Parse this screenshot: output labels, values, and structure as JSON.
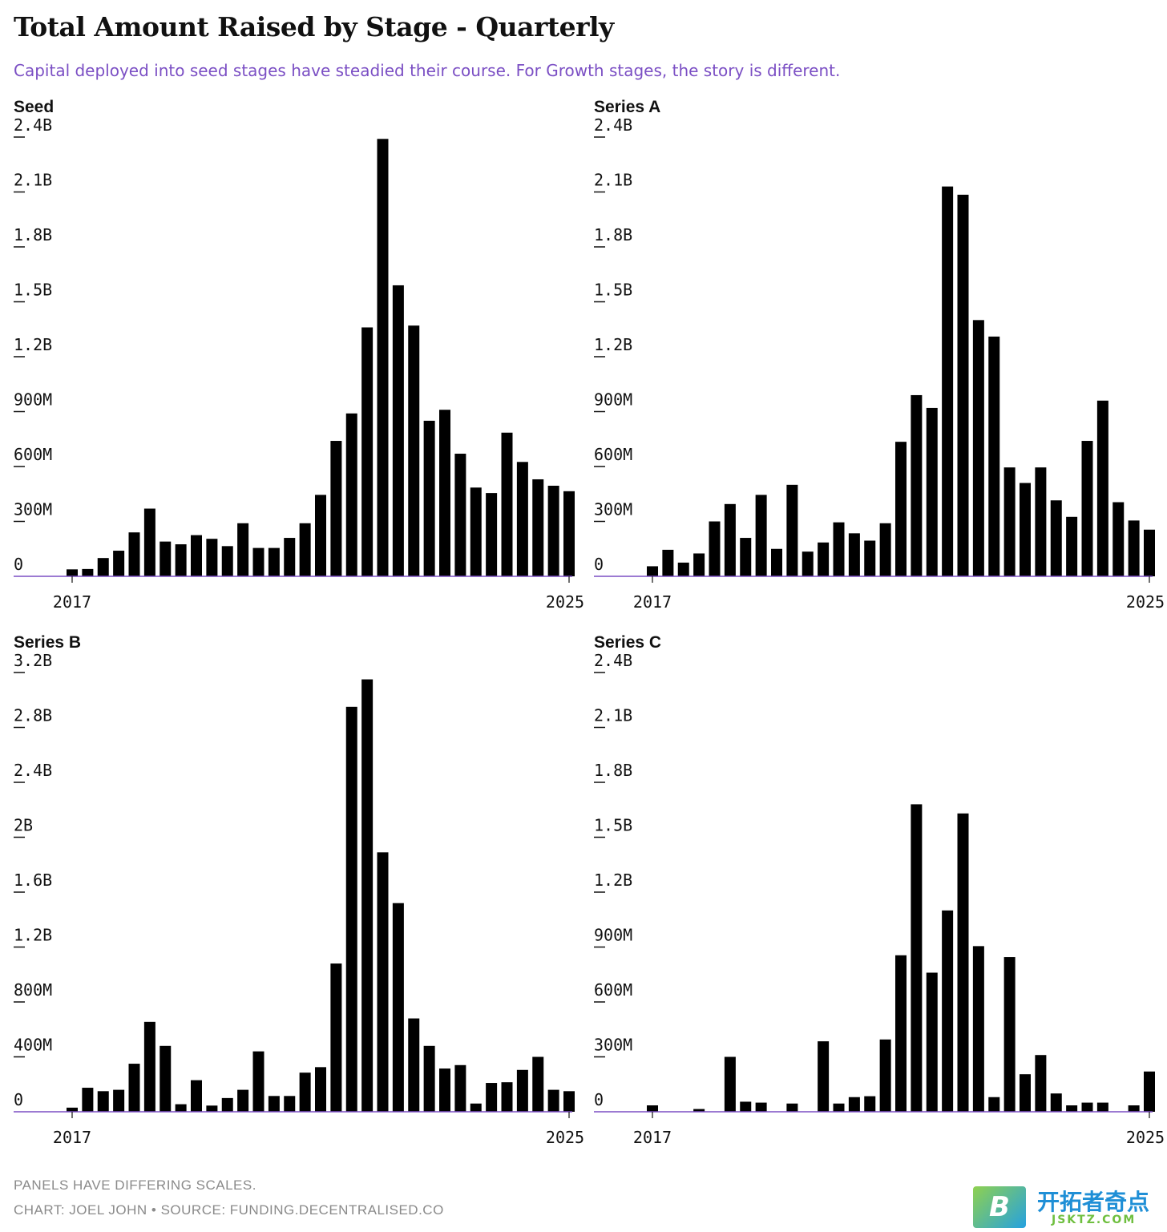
{
  "title": "Total Amount Raised by Stage - Quarterly",
  "subtitle": "Capital deployed into seed stages have steadied their course. For Growth stages, the story is different.",
  "footer": {
    "note": "PANELS HAVE DIFFERING SCALES.",
    "credit": "CHART: JOEL JOHN • SOURCE: FUNDING.DECENTRALISED.CO"
  },
  "watermark": {
    "logo_letter": "B",
    "name": "开拓者奇点",
    "domain": "JSKTZ.COM"
  },
  "colors": {
    "bar": "#000000",
    "baseline": "#7b4fc4",
    "subtitle": "#7b4fc4",
    "footer": "#8a8a8a",
    "text": "#111111"
  },
  "chart_data": [
    {
      "type": "bar",
      "title": "Seed",
      "x_tick_labels": [
        "2017",
        "2025"
      ],
      "y_tick_labels": [
        "0",
        "300M",
        "600M",
        "900M",
        "1.2B",
        "1.5B",
        "1.8B",
        "2.1B",
        "2.4B"
      ],
      "ylim": [
        0,
        2400
      ],
      "unit": "M",
      "values": [
        38,
        40,
        100,
        140,
        240,
        370,
        190,
        175,
        225,
        205,
        165,
        290,
        155,
        155,
        210,
        290,
        445,
        740,
        890,
        1360,
        2390,
        1590,
        1370,
        850,
        910,
        670,
        485,
        455,
        785,
        625,
        530,
        495,
        465
      ],
      "grid": false
    },
    {
      "type": "bar",
      "title": "Series A",
      "x_tick_labels": [
        "2017",
        "2025"
      ],
      "y_tick_labels": [
        "0",
        "300M",
        "600M",
        "900M",
        "1.2B",
        "1.5B",
        "1.8B",
        "2.1B",
        "2.4B"
      ],
      "ylim": [
        0,
        2400
      ],
      "unit": "M",
      "values": [
        55,
        145,
        75,
        125,
        300,
        395,
        210,
        445,
        150,
        500,
        135,
        185,
        295,
        235,
        195,
        290,
        735,
        990,
        920,
        2130,
        2085,
        1400,
        1310,
        595,
        510,
        595,
        415,
        325,
        740,
        960,
        405,
        305,
        255
      ],
      "grid": false
    },
    {
      "type": "bar",
      "title": "Series B",
      "x_tick_labels": [
        "2017",
        "2025"
      ],
      "y_tick_labels": [
        "0",
        "400M",
        "800M",
        "1.2B",
        "1.6B",
        "2B",
        "2.4B",
        "2.8B",
        "3.2B"
      ],
      "ylim": [
        0,
        3200
      ],
      "unit": "M",
      "values": [
        30,
        175,
        150,
        160,
        350,
        655,
        480,
        55,
        230,
        45,
        100,
        160,
        440,
        115,
        115,
        285,
        325,
        1080,
        2950,
        3150,
        1890,
        1520,
        680,
        480,
        315,
        340,
        60,
        210,
        215,
        305,
        400,
        160,
        150
      ],
      "grid": false
    },
    {
      "type": "bar",
      "title": "Series C",
      "x_tick_labels": [
        "2017",
        "2025"
      ],
      "y_tick_labels": [
        "0",
        "300M",
        "600M",
        "900M",
        "1.2B",
        "1.5B",
        "1.8B",
        "2.1B",
        "2.4B"
      ],
      "ylim": [
        0,
        2400
      ],
      "unit": "M",
      "values": [
        35,
        0,
        0,
        15,
        0,
        300,
        55,
        50,
        0,
        45,
        0,
        385,
        45,
        80,
        85,
        395,
        855,
        1680,
        760,
        1100,
        1630,
        905,
        80,
        845,
        205,
        310,
        100,
        35,
        50,
        50,
        0,
        35,
        220
      ],
      "grid": false
    }
  ]
}
